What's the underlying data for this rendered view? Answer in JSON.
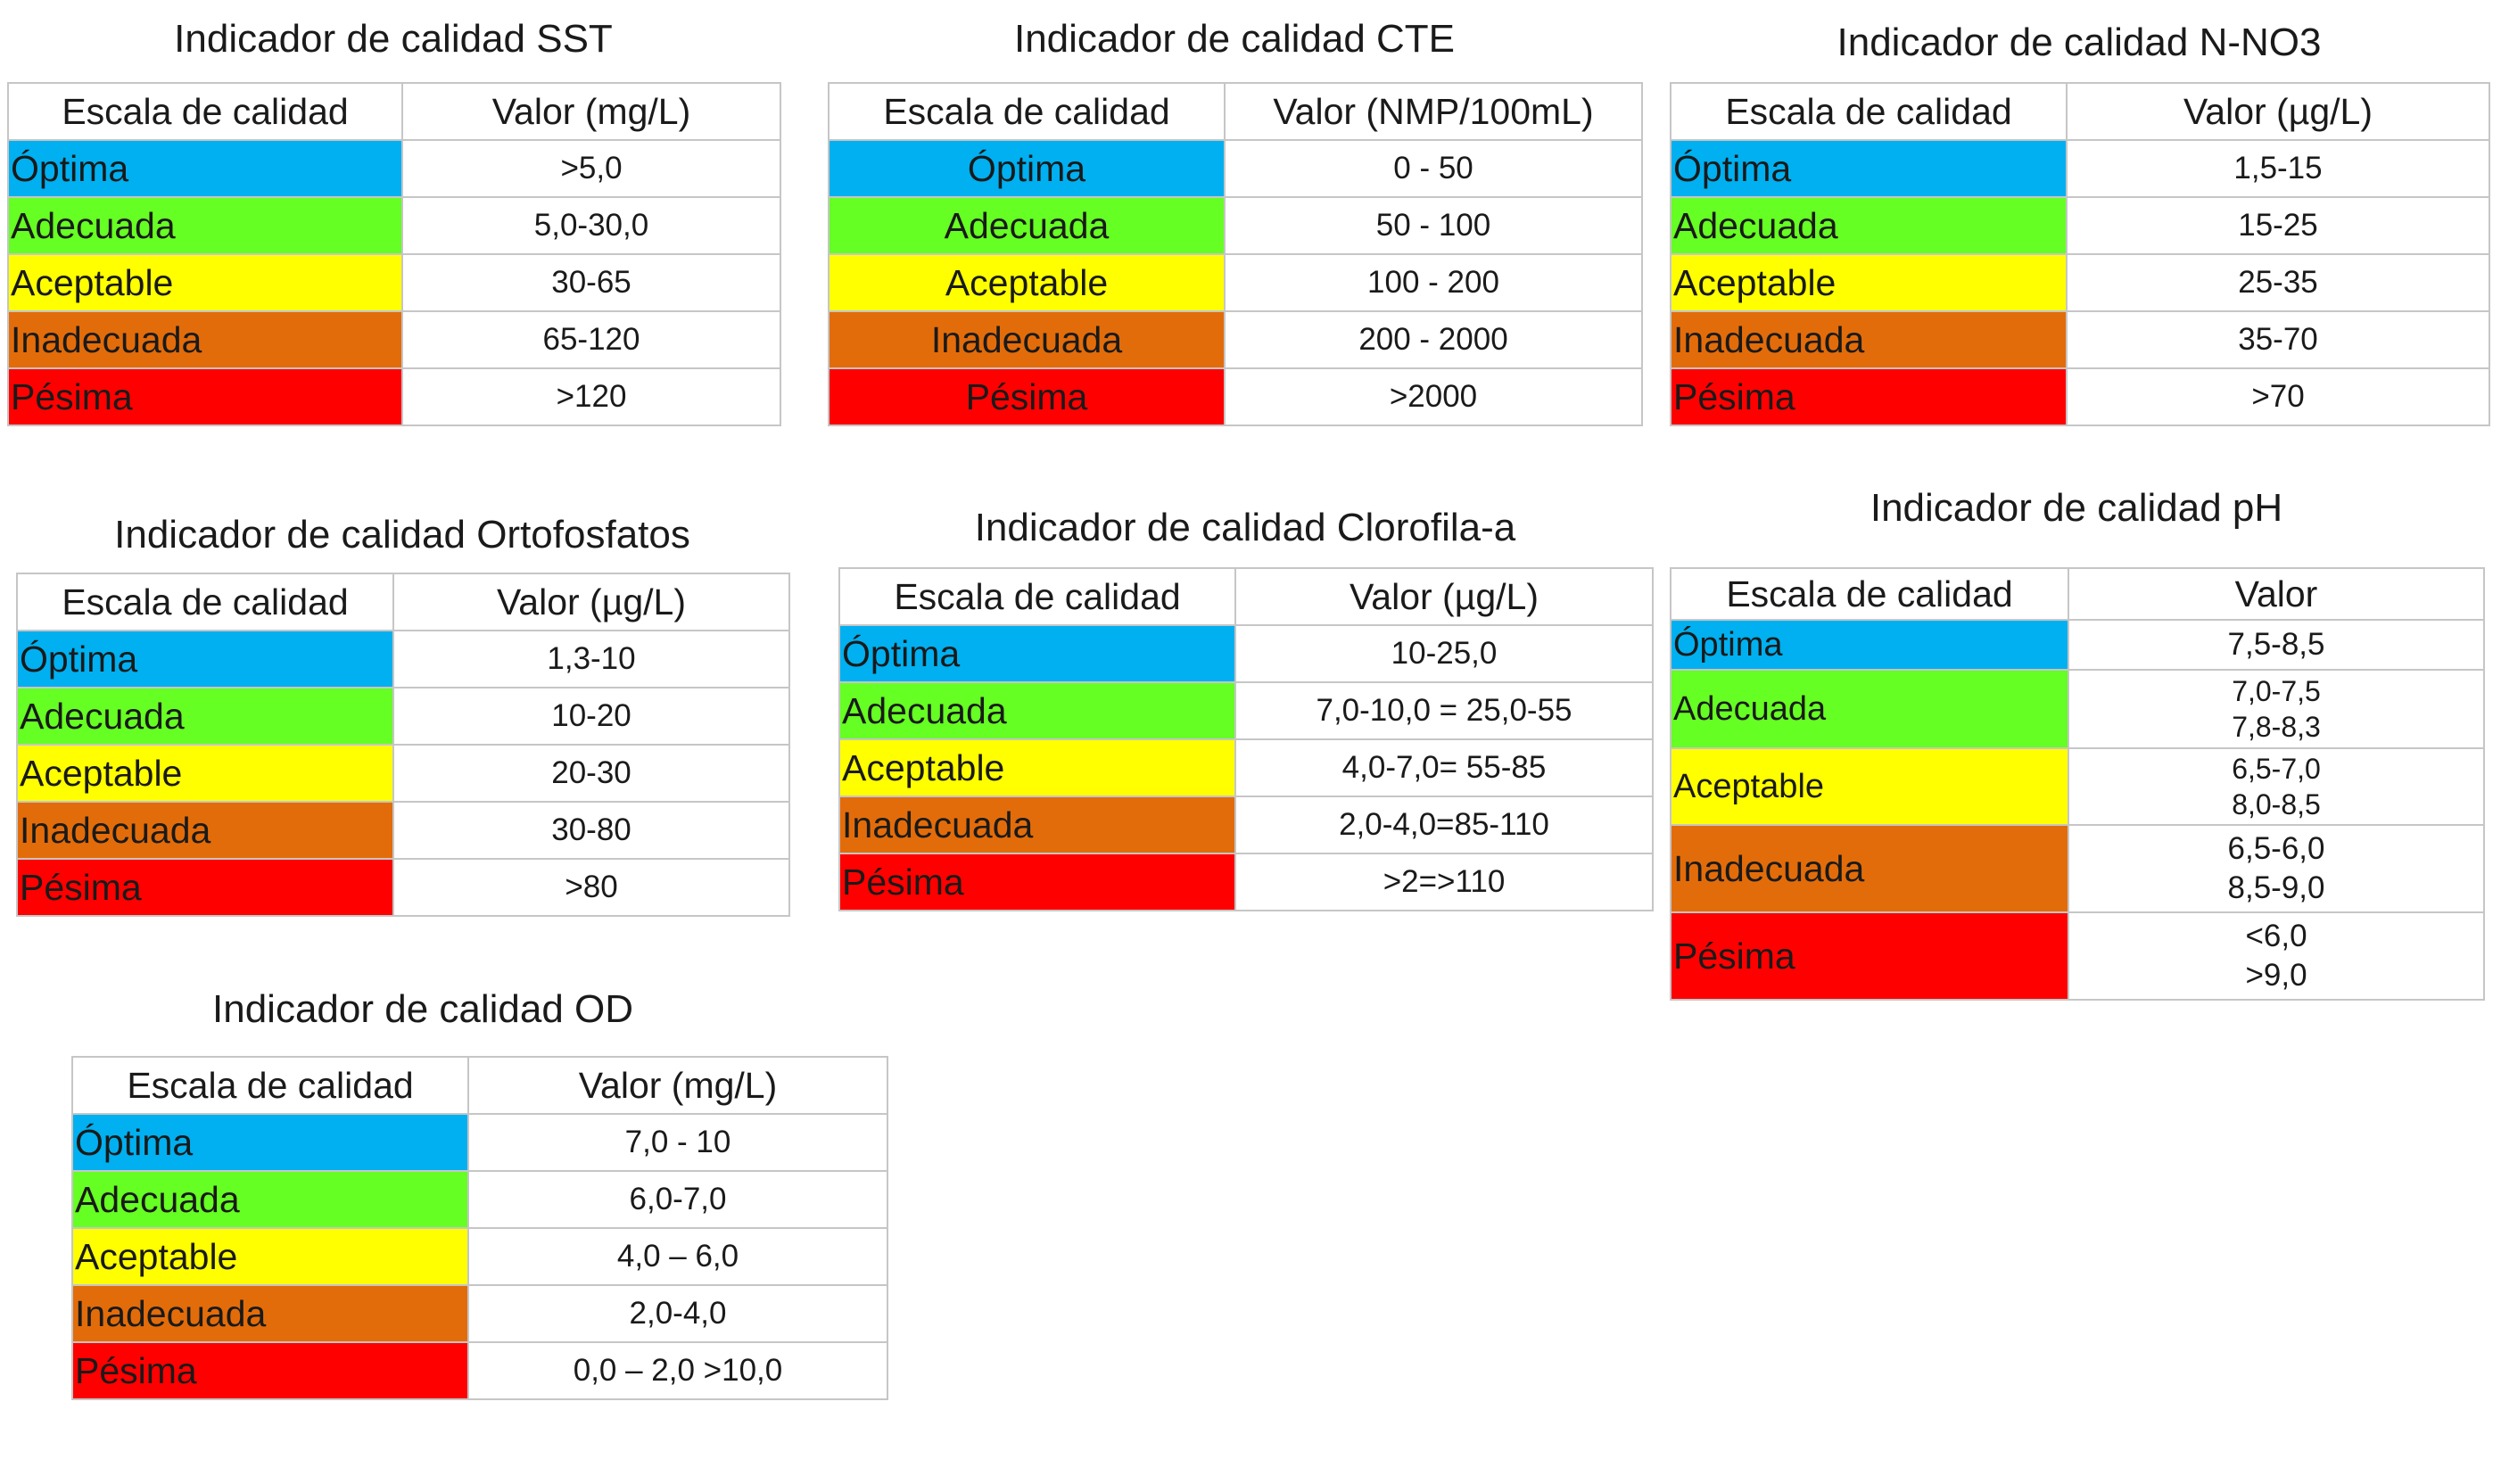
{
  "colors": {
    "optima": "#00b0f0",
    "adecuada": "#66ff23",
    "aceptable": "#ffff00",
    "inadecuada": "#e36c0a",
    "pesima": "#ff0000"
  },
  "tables": {
    "sst": {
      "title": "Indicador de calidad SST",
      "header_scale": "Escala de calidad",
      "header_value": "Valor (mg/L)",
      "rows": [
        {
          "scale": "Óptima",
          "value": ">5,0"
        },
        {
          "scale": "Adecuada",
          "value": "5,0-30,0"
        },
        {
          "scale": "Aceptable",
          "value": "30-65"
        },
        {
          "scale": "Inadecuada",
          "value": "65-120"
        },
        {
          "scale": "Pésima",
          "value": ">120"
        }
      ]
    },
    "cte": {
      "title": "Indicador de calidad CTE",
      "header_scale": "Escala de calidad",
      "header_value": "Valor (NMP/100mL)",
      "rows": [
        {
          "scale": "Óptima",
          "value": "0 - 50"
        },
        {
          "scale": "Adecuada",
          "value": "50 - 100"
        },
        {
          "scale": "Aceptable",
          "value": "100 - 200"
        },
        {
          "scale": "Inadecuada",
          "value": "200 - 2000"
        },
        {
          "scale": "Pésima",
          "value": ">2000"
        }
      ]
    },
    "nno3": {
      "title": "Indicador de calidad N-NO3",
      "header_scale": "Escala de calidad",
      "header_value": "Valor (µg/L)",
      "rows": [
        {
          "scale": "Óptima",
          "value": "1,5-15"
        },
        {
          "scale": "Adecuada",
          "value": "15-25"
        },
        {
          "scale": "Aceptable",
          "value": "25-35"
        },
        {
          "scale": "Inadecuada",
          "value": "35-70"
        },
        {
          "scale": "Pésima",
          "value": ">70"
        }
      ]
    },
    "ortofosfatos": {
      "title": "Indicador de calidad Ortofosfatos",
      "header_scale": "Escala de calidad",
      "header_value": "Valor (µg/L)",
      "rows": [
        {
          "scale": "Óptima",
          "value": "1,3-10"
        },
        {
          "scale": "Adecuada",
          "value": "10-20"
        },
        {
          "scale": "Aceptable",
          "value": "20-30"
        },
        {
          "scale": "Inadecuada",
          "value": "30-80"
        },
        {
          "scale": "Pésima",
          "value": ">80"
        }
      ]
    },
    "clorofila": {
      "title": "Indicador de calidad Clorofila-a",
      "header_scale": "Escala de calidad",
      "header_value": "Valor (µg/L)",
      "rows": [
        {
          "scale": "Óptima",
          "value": "10-25,0"
        },
        {
          "scale": "Adecuada",
          "value": "7,0-10,0 = 25,0-55"
        },
        {
          "scale": "Aceptable",
          "value": "4,0-7,0= 55-85"
        },
        {
          "scale": "Inadecuada",
          "value": "2,0-4,0=85-110"
        },
        {
          "scale": "Pésima",
          "value": ">2=>110"
        }
      ]
    },
    "ph": {
      "title": "Indicador de calidad pH",
      "header_scale": "Escala de calidad",
      "header_value": "Valor",
      "rows": [
        {
          "scale": "Óptima",
          "value1": "7,5-8,5",
          "value2": ""
        },
        {
          "scale": "Adecuada",
          "value1": "7,0-7,5",
          "value2": "7,8-8,3"
        },
        {
          "scale": "Aceptable",
          "value1": "6,5-7,0",
          "value2": "8,0-8,5"
        },
        {
          "scale": "Inadecuada",
          "value1": "6,5-6,0",
          "value2": "8,5-9,0"
        },
        {
          "scale": "Pésima",
          "value1": "<6,0",
          "value2": ">9,0"
        }
      ]
    },
    "od": {
      "title": "Indicador de calidad OD",
      "header_scale": "Escala de calidad",
      "header_value": "Valor (mg/L)",
      "rows": [
        {
          "scale": "Óptima",
          "value": "7,0 - 10"
        },
        {
          "scale": "Adecuada",
          "value": "6,0-7,0"
        },
        {
          "scale": "Aceptable",
          "value": "4,0 – 6,0"
        },
        {
          "scale": "Inadecuada",
          "value": "2,0-4,0"
        },
        {
          "scale": "Pésima",
          "value": "0,0 – 2,0 >10,0"
        }
      ]
    }
  }
}
